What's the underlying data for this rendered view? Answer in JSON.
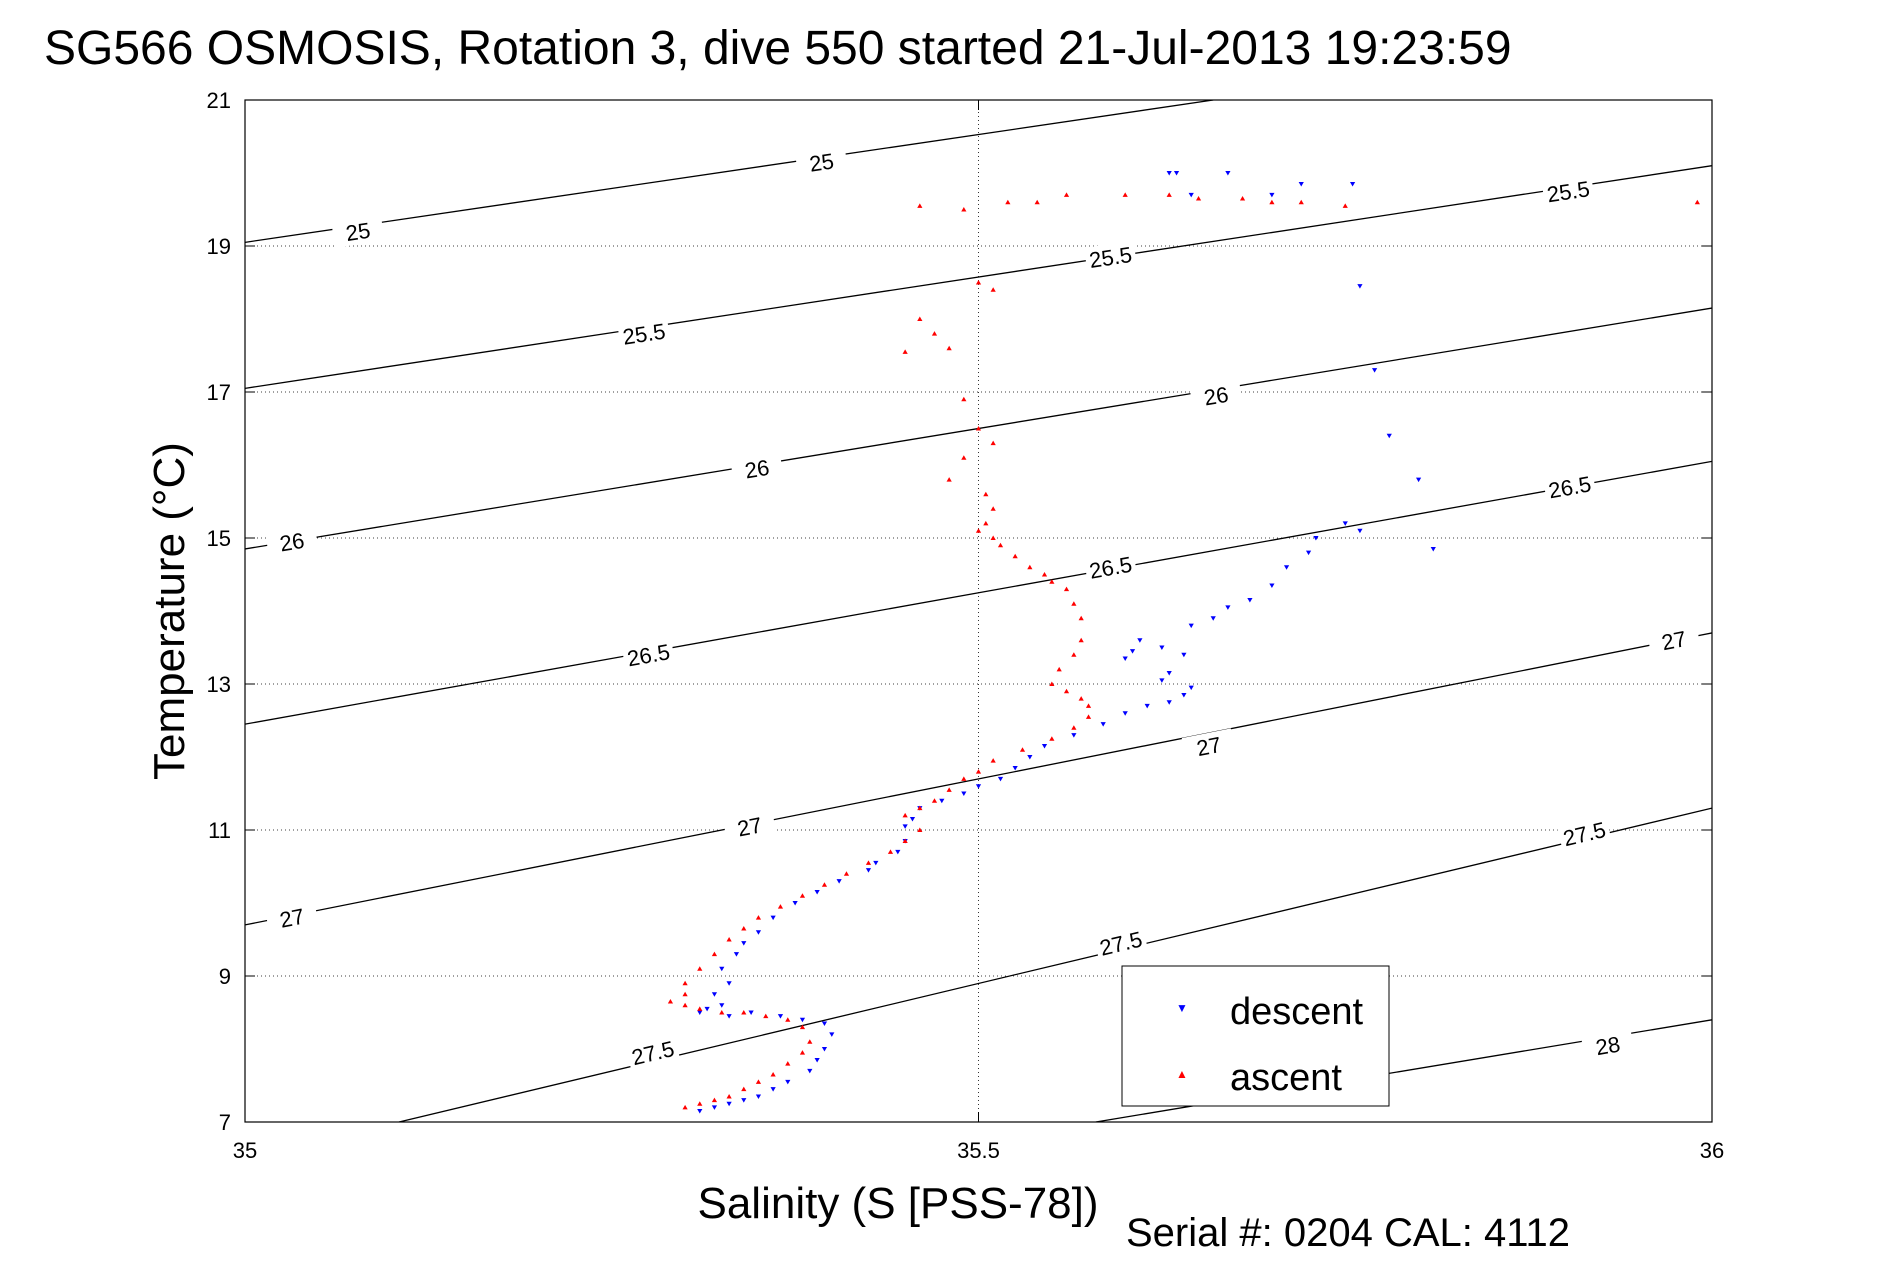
{
  "chart_data": {
    "type": "scatter",
    "title": "SG566 OSMOSIS, Rotation 3, dive 550 started 21-Jul-2013 19:23:59",
    "xlabel": "Salinity (S [PSS-78])",
    "ylabel": "Temperature (°C)",
    "xlim": [
      35,
      36
    ],
    "ylim": [
      7,
      21
    ],
    "x_ticks": [
      35,
      35.5,
      36
    ],
    "x_tick_labels": [
      "35",
      "35.5",
      "36"
    ],
    "y_ticks": [
      7,
      9,
      11,
      13,
      15,
      17,
      19,
      21
    ],
    "y_tick_labels": [
      "7",
      "9",
      "11",
      "13",
      "15",
      "17",
      "19",
      "21"
    ],
    "grid": true,
    "legend_position": "bottom-right",
    "footer": "Serial #: 0204  CAL: 4112",
    "colors": {
      "descent": "#0000ff",
      "ascent": "#ff0000",
      "contour": "#000000"
    },
    "contours": [
      {
        "label": "25",
        "points": [
          [
            35,
            19.05
          ],
          [
            35.66,
            21
          ]
        ],
        "label_at": [
          [
            35.077,
            19.2
          ],
          [
            35.393,
            20.15
          ]
        ]
      },
      {
        "label": "25.5",
        "points": [
          [
            35,
            17.05
          ],
          [
            36,
            20.1
          ]
        ],
        "label_at": [
          [
            35.272,
            17.8
          ],
          [
            35.59,
            18.85
          ],
          [
            35.902,
            19.75
          ]
        ]
      },
      {
        "label": "26",
        "points": [
          [
            35,
            14.85
          ],
          [
            36,
            18.15
          ]
        ],
        "label_at": [
          [
            35.032,
            14.95
          ],
          [
            35.349,
            15.95
          ],
          [
            35.662,
            16.95
          ]
        ]
      },
      {
        "label": "26.5",
        "points": [
          [
            35,
            12.45
          ],
          [
            36,
            16.05
          ]
        ],
        "label_at": [
          [
            35.275,
            13.4
          ],
          [
            35.59,
            14.6
          ],
          [
            35.903,
            15.7
          ]
        ]
      },
      {
        "label": "27",
        "points": [
          [
            35,
            9.7
          ],
          [
            36,
            13.7
          ]
        ],
        "label_at": [
          [
            35.032,
            9.8
          ],
          [
            35.344,
            11.05
          ],
          [
            35.657,
            12.15
          ],
          [
            35.974,
            13.6
          ]
        ]
      },
      {
        "label": "27.5",
        "points": [
          [
            35.105,
            7
          ],
          [
            36,
            11.3
          ]
        ],
        "label_at": [
          [
            35.278,
            7.95
          ],
          [
            35.597,
            9.45
          ],
          [
            35.913,
            10.95
          ]
        ]
      },
      {
        "label": "28",
        "points": [
          [
            35.58,
            7
          ],
          [
            36,
            8.4
          ]
        ],
        "label_at": [
          [
            35.929,
            8.05
          ]
        ]
      }
    ],
    "series": [
      {
        "name": "descent",
        "x": [
          35.63,
          35.635,
          35.67,
          35.645,
          35.7,
          35.72,
          35.755,
          35.76,
          35.77,
          35.76,
          35.78,
          35.8,
          35.81,
          35.75,
          35.73,
          35.725,
          35.71,
          35.7,
          35.685,
          35.67,
          35.66,
          35.645,
          35.64,
          35.625,
          35.61,
          35.605,
          35.6,
          35.63,
          35.625,
          35.645,
          35.64,
          35.63,
          35.615,
          35.6,
          35.585,
          35.565,
          35.545,
          35.535,
          35.525,
          35.515,
          35.5,
          35.49,
          35.475,
          35.46,
          35.455,
          35.45,
          35.45,
          35.445,
          35.43,
          35.425,
          35.405,
          35.39,
          35.375,
          35.36,
          35.35,
          35.34,
          35.335,
          35.325,
          35.33,
          35.32,
          35.325,
          35.315,
          35.31,
          35.33,
          35.345,
          35.365,
          35.38,
          35.395,
          35.4,
          35.395,
          35.39,
          35.385,
          35.37,
          35.36,
          35.35,
          35.34,
          35.33,
          35.32,
          35.31
        ],
        "y": [
          20.0,
          20.0,
          20.0,
          19.7,
          19.7,
          19.85,
          19.85,
          18.45,
          17.3,
          15.1,
          16.4,
          15.8,
          14.85,
          15.2,
          15.0,
          14.8,
          14.6,
          14.35,
          14.15,
          14.05,
          13.9,
          13.8,
          13.4,
          13.5,
          13.6,
          13.45,
          13.35,
          13.15,
          13.05,
          12.95,
          12.85,
          12.75,
          12.7,
          12.6,
          12.45,
          12.3,
          12.15,
          12.0,
          11.85,
          11.7,
          11.6,
          11.5,
          11.4,
          11.3,
          11.15,
          11.05,
          10.85,
          10.7,
          10.55,
          10.45,
          10.3,
          10.15,
          10.0,
          9.8,
          9.6,
          9.45,
          9.3,
          9.1,
          8.9,
          8.75,
          8.6,
          8.55,
          8.5,
          8.45,
          8.5,
          8.45,
          8.4,
          8.35,
          8.2,
          8.0,
          7.85,
          7.7,
          7.55,
          7.45,
          7.35,
          7.3,
          7.25,
          7.2,
          7.15
        ]
      },
      {
        "name": "ascent",
        "x": [
          35.46,
          35.49,
          35.52,
          35.54,
          35.56,
          35.6,
          35.63,
          35.65,
          35.68,
          35.7,
          35.72,
          35.75,
          35.99,
          35.5,
          35.51,
          35.46,
          35.47,
          35.48,
          35.45,
          35.49,
          35.5,
          35.51,
          35.49,
          35.48,
          35.505,
          35.51,
          35.505,
          35.51,
          35.5,
          35.515,
          35.525,
          35.535,
          35.545,
          35.55,
          35.56,
          35.565,
          35.57,
          35.57,
          35.565,
          35.555,
          35.55,
          35.56,
          35.57,
          35.575,
          35.575,
          35.565,
          35.55,
          35.53,
          35.51,
          35.5,
          35.49,
          35.48,
          35.47,
          35.46,
          35.45,
          35.46,
          35.45,
          35.44,
          35.425,
          35.41,
          35.395,
          35.38,
          35.365,
          35.35,
          35.34,
          35.33,
          35.32,
          35.31,
          35.3,
          35.3,
          35.29,
          35.3,
          35.31,
          35.325,
          35.34,
          35.355,
          35.37,
          35.38,
          35.385,
          35.38,
          35.37,
          35.36,
          35.35,
          35.34,
          35.33,
          35.32,
          35.31,
          35.3
        ],
        "y": [
          19.55,
          19.5,
          19.6,
          19.6,
          19.7,
          19.7,
          19.7,
          19.65,
          19.65,
          19.6,
          19.6,
          19.55,
          19.6,
          18.5,
          18.4,
          18.0,
          17.8,
          17.6,
          17.55,
          16.9,
          16.5,
          16.3,
          16.1,
          15.8,
          15.6,
          15.4,
          15.2,
          15.0,
          15.1,
          14.9,
          14.75,
          14.6,
          14.5,
          14.4,
          14.3,
          14.1,
          13.9,
          13.6,
          13.4,
          13.2,
          13.0,
          12.9,
          12.8,
          12.7,
          12.55,
          12.4,
          12.25,
          12.1,
          11.95,
          11.8,
          11.7,
          11.55,
          11.4,
          11.3,
          11.2,
          11.0,
          10.85,
          10.7,
          10.55,
          10.4,
          10.25,
          10.1,
          9.95,
          9.8,
          9.65,
          9.5,
          9.3,
          9.1,
          8.9,
          8.75,
          8.65,
          8.6,
          8.55,
          8.5,
          8.5,
          8.45,
          8.4,
          8.3,
          8.1,
          7.95,
          7.8,
          7.65,
          7.55,
          7.45,
          7.35,
          7.3,
          7.25,
          7.2
        ]
      }
    ]
  }
}
